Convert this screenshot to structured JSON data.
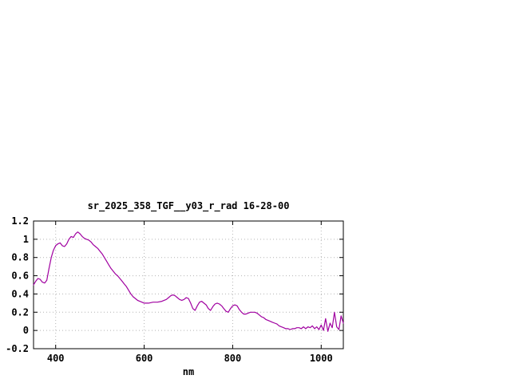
{
  "page": {
    "background": "#ffffff"
  },
  "chart_data": {
    "type": "line",
    "title": "sr_2025_358_TGF__y03_r_rad 16-28-00",
    "xlabel": "nm",
    "ylabel": "",
    "xlim": [
      350,
      1050
    ],
    "ylim": [
      -0.2,
      1.2
    ],
    "xtick_values": [
      400,
      600,
      800,
      1000
    ],
    "xtick_labels": [
      "400",
      "600",
      "800",
      "1000"
    ],
    "ytick_values": [
      -0.2,
      0,
      0.2,
      0.4,
      0.6,
      0.8,
      1,
      1.2
    ],
    "ytick_labels": [
      "-0.2",
      "0",
      "0.2",
      "0.4",
      "0.6",
      "0.8",
      "1",
      "1.2"
    ],
    "grid": true,
    "legend": "none",
    "line_color": "#a000a0",
    "grid_color": "#b4b4b4",
    "frame_color": "#000000",
    "series_name": "sr_2025_358_TGF__y03_r_rad",
    "x": [
      350,
      355,
      360,
      365,
      370,
      375,
      380,
      385,
      390,
      395,
      400,
      405,
      410,
      415,
      420,
      425,
      430,
      435,
      440,
      445,
      450,
      455,
      460,
      465,
      470,
      475,
      480,
      485,
      490,
      495,
      500,
      505,
      510,
      515,
      520,
      525,
      530,
      535,
      540,
      545,
      550,
      555,
      560,
      565,
      570,
      575,
      580,
      585,
      590,
      595,
      600,
      610,
      620,
      630,
      640,
      650,
      655,
      660,
      665,
      670,
      675,
      680,
      685,
      690,
      695,
      700,
      705,
      710,
      715,
      720,
      725,
      730,
      735,
      740,
      745,
      750,
      755,
      760,
      765,
      770,
      775,
      780,
      785,
      790,
      795,
      800,
      805,
      810,
      815,
      820,
      825,
      830,
      835,
      840,
      845,
      850,
      855,
      860,
      865,
      870,
      875,
      880,
      885,
      890,
      895,
      900,
      905,
      910,
      915,
      920,
      925,
      930,
      935,
      940,
      945,
      950,
      955,
      960,
      965,
      970,
      975,
      980,
      985,
      990,
      995,
      1000,
      1005,
      1010,
      1015,
      1020,
      1025,
      1030,
      1035,
      1040,
      1045,
      1050
    ],
    "y": [
      0.5,
      0.54,
      0.57,
      0.56,
      0.53,
      0.52,
      0.55,
      0.68,
      0.8,
      0.88,
      0.93,
      0.95,
      0.96,
      0.93,
      0.92,
      0.95,
      1.0,
      1.03,
      1.02,
      1.06,
      1.08,
      1.06,
      1.03,
      1.01,
      1.0,
      0.99,
      0.97,
      0.94,
      0.92,
      0.9,
      0.87,
      0.84,
      0.8,
      0.76,
      0.72,
      0.68,
      0.65,
      0.62,
      0.6,
      0.57,
      0.54,
      0.51,
      0.48,
      0.44,
      0.4,
      0.37,
      0.35,
      0.33,
      0.32,
      0.31,
      0.3,
      0.3,
      0.31,
      0.31,
      0.32,
      0.34,
      0.36,
      0.38,
      0.39,
      0.38,
      0.36,
      0.34,
      0.33,
      0.34,
      0.36,
      0.35,
      0.3,
      0.24,
      0.22,
      0.27,
      0.31,
      0.32,
      0.3,
      0.28,
      0.24,
      0.22,
      0.26,
      0.29,
      0.3,
      0.29,
      0.27,
      0.24,
      0.21,
      0.2,
      0.24,
      0.27,
      0.28,
      0.27,
      0.23,
      0.2,
      0.18,
      0.18,
      0.19,
      0.2,
      0.2,
      0.2,
      0.19,
      0.17,
      0.15,
      0.14,
      0.12,
      0.11,
      0.1,
      0.09,
      0.08,
      0.07,
      0.05,
      0.04,
      0.03,
      0.02,
      0.02,
      0.01,
      0.02,
      0.02,
      0.03,
      0.03,
      0.02,
      0.04,
      0.02,
      0.04,
      0.03,
      0.05,
      0.02,
      0.04,
      0.01,
      0.06,
      0.0,
      0.13,
      -0.01,
      0.08,
      0.03,
      0.2,
      0.04,
      0.01,
      0.16,
      0.08
    ]
  }
}
